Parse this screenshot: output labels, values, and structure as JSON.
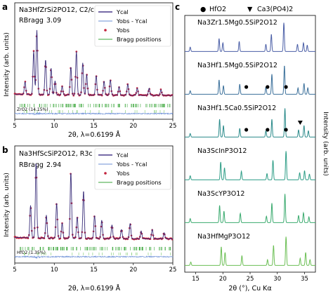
{
  "chart_data": [
    {
      "panel": "a",
      "type": "line",
      "formula": "Na3HfZrSi2PO12, C2/c",
      "rbragg_label": "RBragg",
      "rbragg_value": "3.09",
      "xlabel": "2θ, λ=0.6199 Å",
      "ylabel": "Intensity (arb. units)",
      "xlim": [
        5,
        25
      ],
      "xticks": [
        5,
        10,
        15,
        20,
        25
      ],
      "phase_note": "ZrO2 (14.15%)",
      "legend": [
        "Ycal",
        "Yobs - Ycal",
        "Yobs",
        "Bragg positions"
      ],
      "legend_placement": "top-right",
      "peaks": [
        [
          6.3,
          0.18
        ],
        [
          7.4,
          0.62
        ],
        [
          7.8,
          0.92
        ],
        [
          8.9,
          0.5
        ],
        [
          9.6,
          0.38
        ],
        [
          10.1,
          0.2
        ],
        [
          11.0,
          0.12
        ],
        [
          12.1,
          0.4
        ],
        [
          12.8,
          0.62
        ],
        [
          13.6,
          0.46
        ],
        [
          14.1,
          0.3
        ],
        [
          15.3,
          0.28
        ],
        [
          16.3,
          0.2
        ],
        [
          17.1,
          0.22
        ],
        [
          18.2,
          0.12
        ],
        [
          19.3,
          0.16
        ],
        [
          20.5,
          0.1
        ],
        [
          22.0,
          0.1
        ],
        [
          23.5,
          0.08
        ]
      ]
    },
    {
      "panel": "b",
      "type": "line",
      "formula": "Na3HfScSiP2O12, R3c",
      "rbragg_label": "RBragg",
      "rbragg_value": "2.94",
      "xlabel": "2θ, λ=0.6199 Å",
      "ylabel": "Intensity (arb. units)",
      "xlim": [
        5,
        25
      ],
      "xticks": [
        5,
        10,
        15,
        20,
        25
      ],
      "phase_note": "HfO2 (1.35%)",
      "legend": [
        "Ycal",
        "Yobs - Ycal",
        "Yobs",
        "Bragg positions"
      ],
      "legend_placement": "top-right",
      "peaks": [
        [
          7.0,
          0.42
        ],
        [
          7.7,
          0.98
        ],
        [
          9.0,
          0.3
        ],
        [
          10.3,
          0.46
        ],
        [
          11.0,
          0.2
        ],
        [
          12.1,
          0.86
        ],
        [
          12.9,
          0.28
        ],
        [
          13.7,
          0.62
        ],
        [
          15.1,
          0.3
        ],
        [
          16.0,
          0.24
        ],
        [
          17.3,
          0.18
        ],
        [
          18.5,
          0.12
        ],
        [
          19.6,
          0.2
        ],
        [
          21.0,
          0.1
        ],
        [
          22.4,
          0.12
        ],
        [
          23.9,
          0.08
        ]
      ]
    },
    {
      "panel": "c",
      "type": "line",
      "xlabel": "2θ (°), Cu Kα",
      "ylabel": "Intensity (arb. units)",
      "xlim": [
        13,
        37
      ],
      "xticks": [
        15,
        20,
        25,
        30,
        35
      ],
      "markers": [
        {
          "symbol": "●",
          "label": "HfO2"
        },
        {
          "symbol": "▼",
          "label": "Ca3(PO4)2"
        }
      ],
      "series": [
        {
          "name": "Na3Zr1.5Mg0.5SiP2O12",
          "color": "#4a5ea6",
          "peaks": [
            [
              14.0,
              0.15
            ],
            [
              19.3,
              0.45
            ],
            [
              20.0,
              0.3
            ],
            [
              23.0,
              0.35
            ],
            [
              27.9,
              0.25
            ],
            [
              28.9,
              0.6
            ],
            [
              31.2,
              1.0
            ],
            [
              33.7,
              0.25
            ],
            [
              34.8,
              0.3
            ],
            [
              35.5,
              0.22
            ]
          ]
        },
        {
          "name": "Na3Hf1.5Mg0.5SiP2O12",
          "color": "#3a6f9a",
          "peaks": [
            [
              14.0,
              0.12
            ],
            [
              19.3,
              0.5
            ],
            [
              20.1,
              0.3
            ],
            [
              23.1,
              0.35
            ],
            [
              27.9,
              0.25
            ],
            [
              29.0,
              0.7
            ],
            [
              31.3,
              1.0
            ],
            [
              33.8,
              0.22
            ],
            [
              34.9,
              0.38
            ],
            [
              35.6,
              0.22
            ]
          ],
          "hfo2": [
            24.3,
            28.2,
            31.6
          ]
        },
        {
          "name": "Na3Hf1.5Ca0.5SiP2O12",
          "color": "#2a8a8a",
          "peaks": [
            [
              14.0,
              0.12
            ],
            [
              19.4,
              0.62
            ],
            [
              20.1,
              0.4
            ],
            [
              23.1,
              0.3
            ],
            [
              27.9,
              0.22
            ],
            [
              29.0,
              0.62
            ],
            [
              31.4,
              1.0
            ],
            [
              33.9,
              0.25
            ],
            [
              34.9,
              0.4
            ],
            [
              35.7,
              0.22
            ]
          ],
          "hfo2": [
            24.3,
            28.2,
            31.6
          ],
          "ca3po42": [
            34.2
          ]
        },
        {
          "name": "Na3ScInP3O12",
          "color": "#2d9d86",
          "peaks": [
            [
              14.0,
              0.14
            ],
            [
              19.6,
              0.62
            ],
            [
              20.3,
              0.42
            ],
            [
              23.4,
              0.3
            ],
            [
              28.1,
              0.22
            ],
            [
              29.2,
              0.68
            ],
            [
              31.6,
              1.0
            ],
            [
              34.1,
              0.25
            ],
            [
              35.0,
              0.32
            ],
            [
              35.9,
              0.2
            ]
          ]
        },
        {
          "name": "Na3ScYP3O12",
          "color": "#3aaa6e",
          "peaks": [
            [
              14.0,
              0.14
            ],
            [
              19.4,
              0.6
            ],
            [
              20.2,
              0.4
            ],
            [
              23.2,
              0.32
            ],
            [
              28.0,
              0.22
            ],
            [
              29.0,
              0.68
            ],
            [
              31.4,
              1.0
            ],
            [
              33.9,
              0.25
            ],
            [
              34.8,
              0.34
            ],
            [
              35.8,
              0.2
            ]
          ]
        },
        {
          "name": "Na3HfMgP3O12",
          "color": "#6cbf55",
          "peaks": [
            [
              14.1,
              0.12
            ],
            [
              19.7,
              0.65
            ],
            [
              20.4,
              0.45
            ],
            [
              23.5,
              0.34
            ],
            [
              28.2,
              0.2
            ],
            [
              29.3,
              0.7
            ],
            [
              31.6,
              1.0
            ],
            [
              34.2,
              0.25
            ],
            [
              35.2,
              0.45
            ],
            [
              36.0,
              0.2
            ]
          ]
        }
      ]
    }
  ]
}
